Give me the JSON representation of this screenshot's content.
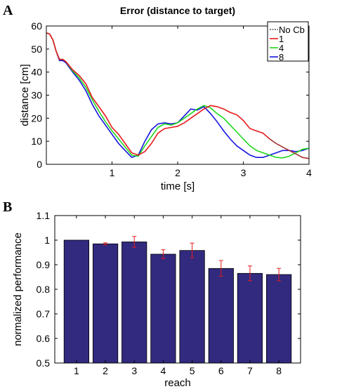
{
  "panel_labels": [
    "A",
    "B"
  ],
  "chart_data": [
    {
      "type": "line",
      "title": "Error (distance to target)",
      "xlabel": "time [s]",
      "ylabel": "distance [cm]",
      "xlim": [
        0,
        4
      ],
      "ylim": [
        0,
        60
      ],
      "xticks": [
        1,
        2,
        3,
        4
      ],
      "yticks": [
        0,
        10,
        20,
        30,
        40,
        50,
        60
      ],
      "legend_position": "top-right",
      "colors": {
        "No Cb": "#555555",
        "1": "#e8191c",
        "4": "#1ed81e",
        "8": "#1414e0"
      },
      "series": [
        {
          "name": "No Cb",
          "x": [
            3.4,
            3.5,
            3.6,
            3.7,
            3.8,
            3.9,
            4.0
          ],
          "y": [
            11,
            9,
            7.5,
            6,
            4.5,
            3,
            2.5
          ]
        },
        {
          "name": "1",
          "x": [
            0,
            0.05,
            0.1,
            0.15,
            0.2,
            0.25,
            0.3,
            0.4,
            0.5,
            0.6,
            0.7,
            0.8,
            0.9,
            1.0,
            1.1,
            1.2,
            1.3,
            1.4,
            1.5,
            1.6,
            1.7,
            1.8,
            1.9,
            2.0,
            2.1,
            2.2,
            2.3,
            2.4,
            2.5,
            2.6,
            2.7,
            2.8,
            2.9,
            3.0,
            3.1,
            3.2,
            3.3,
            3.4,
            3.5,
            3.6,
            3.7,
            3.8,
            3.9,
            4.0
          ],
          "y": [
            57,
            56.5,
            54,
            49,
            45.5,
            45.5,
            44.5,
            41,
            38.5,
            35,
            29,
            25,
            21,
            16,
            13,
            9,
            5,
            4,
            5.5,
            9,
            13.5,
            15.5,
            16,
            16.5,
            18,
            20,
            22,
            24,
            25.5,
            25,
            24,
            22.5,
            21.5,
            19,
            15.5,
            14.5,
            13.5,
            11,
            9,
            7.5,
            6,
            4.5,
            3,
            2.5
          ]
        },
        {
          "name": "4",
          "x": [
            0,
            0.05,
            0.1,
            0.15,
            0.2,
            0.25,
            0.3,
            0.4,
            0.5,
            0.6,
            0.7,
            0.8,
            0.9,
            1.0,
            1.1,
            1.2,
            1.3,
            1.4,
            1.5,
            1.6,
            1.7,
            1.8,
            1.9,
            2.0,
            2.1,
            2.2,
            2.3,
            2.4,
            2.5,
            2.6,
            2.7,
            2.8,
            2.9,
            3.0,
            3.1,
            3.2,
            3.3,
            3.4,
            3.5,
            3.6,
            3.7,
            3.8,
            3.9,
            4.0
          ],
          "y": [
            57,
            56.5,
            54,
            49,
            45.5,
            45.5,
            44.5,
            40.5,
            37.5,
            33.5,
            28,
            23,
            18.5,
            14.5,
            11,
            7.5,
            4,
            3.5,
            8,
            12,
            16,
            17.5,
            17,
            18,
            20,
            22,
            24,
            25.5,
            24.5,
            22,
            20,
            17,
            14,
            11,
            8,
            6,
            5,
            4,
            3,
            2.8,
            3.5,
            5,
            6.5,
            7
          ]
        },
        {
          "name": "8",
          "x": [
            0,
            0.05,
            0.1,
            0.15,
            0.2,
            0.25,
            0.3,
            0.4,
            0.5,
            0.6,
            0.7,
            0.8,
            0.9,
            1.0,
            1.1,
            1.2,
            1.3,
            1.4,
            1.5,
            1.6,
            1.7,
            1.8,
            1.9,
            2.0,
            2.1,
            2.2,
            2.3,
            2.4,
            2.5,
            2.6,
            2.7,
            2.8,
            2.9,
            3.0,
            3.1,
            3.2,
            3.3,
            3.4,
            3.5,
            3.6,
            3.7,
            3.8,
            3.9,
            4.0
          ],
          "y": [
            57,
            56.5,
            54,
            49,
            45,
            45,
            44,
            40,
            36.5,
            32,
            26,
            21,
            17,
            13,
            9,
            6,
            3,
            4,
            10,
            15,
            17.5,
            18,
            17.5,
            18,
            21,
            24,
            23.5,
            25,
            22,
            18.5,
            14.5,
            11,
            8,
            6,
            4,
            3,
            3,
            4,
            5,
            6,
            6,
            5.5,
            6,
            7
          ]
        }
      ]
    },
    {
      "type": "bar",
      "title": "",
      "xlabel": "reach",
      "ylabel": "normalized performance",
      "categories": [
        "1",
        "2",
        "3",
        "4",
        "5",
        "6",
        "7",
        "8"
      ],
      "values": [
        1.0,
        0.985,
        0.993,
        0.943,
        0.958,
        0.885,
        0.865,
        0.86
      ],
      "errors": [
        0.0,
        0.004,
        0.022,
        0.018,
        0.03,
        0.032,
        0.03,
        0.025
      ],
      "ylim": [
        0.5,
        1.1
      ],
      "yticks": [
        0.5,
        0.6,
        0.7,
        0.8,
        0.9,
        1.0,
        1.1
      ],
      "ytick_labels": [
        "0.5",
        "0.6",
        "0.7",
        "0.8",
        "0.9",
        "1",
        "1.1"
      ],
      "bar_color": "#312a7e",
      "error_color": "#e8191c"
    }
  ]
}
